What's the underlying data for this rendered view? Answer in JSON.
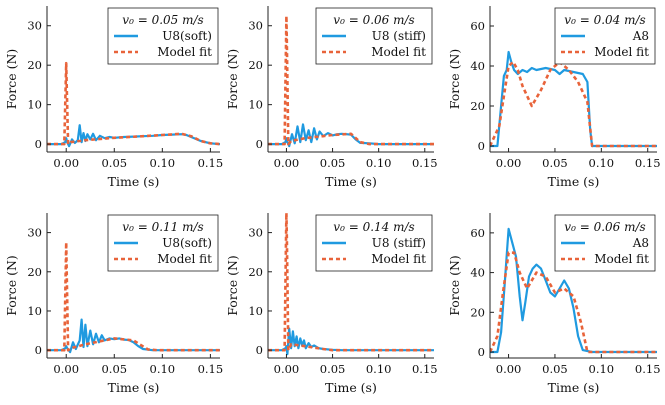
{
  "colors": {
    "measured": "#1f9ae0",
    "model": "#e8633a",
    "axis": "#222222"
  },
  "chart_data": [
    {
      "type": "line",
      "xlabel": "Time (s)",
      "ylabel": "Force (N)",
      "xlim": [
        -0.02,
        0.16
      ],
      "ylim": [
        -2,
        35
      ],
      "xticks": [
        0.0,
        0.05,
        0.1,
        0.15
      ],
      "xtick_labels": [
        "0.00",
        "0.05",
        "0.10",
        "0.15"
      ],
      "yticks": [
        0,
        10,
        20,
        30
      ],
      "ytick_labels": [
        "0",
        "10",
        "20",
        "30"
      ],
      "legend_title": "v₀ = 0.05 m/s",
      "series": [
        {
          "name": "U8(soft)",
          "style": "solid",
          "x": [
            -0.02,
            -0.005,
            -0.001,
            0.0,
            0.001,
            0.003,
            0.006,
            0.009,
            0.012,
            0.014,
            0.016,
            0.018,
            0.02,
            0.022,
            0.025,
            0.028,
            0.031,
            0.035,
            0.04,
            0.045,
            0.05,
            0.06,
            0.07,
            0.08,
            0.09,
            0.1,
            0.11,
            0.12,
            0.125,
            0.13,
            0.14,
            0.15,
            0.16
          ],
          "y": [
            0,
            0,
            0.5,
            1.5,
            0.5,
            -0.5,
            1.2,
            0.3,
            1.0,
            4.8,
            0.5,
            2.8,
            0.8,
            2.5,
            1.2,
            2.6,
            1.0,
            2.1,
            1.5,
            1.8,
            1.6,
            1.8,
            1.9,
            2.0,
            2.1,
            2.3,
            2.4,
            2.5,
            2.3,
            1.8,
            0.8,
            0.2,
            0.0
          ]
        },
        {
          "name": "Model fit",
          "style": "dashed",
          "x": [
            -0.02,
            -0.002,
            -0.0005,
            0.0,
            0.0005,
            0.002,
            0.005,
            0.02,
            0.05,
            0.08,
            0.1,
            0.12,
            0.13,
            0.14,
            0.15,
            0.16
          ],
          "y": [
            0,
            0,
            15,
            20.5,
            15,
            0,
            0.5,
            1.0,
            1.6,
            2.0,
            2.3,
            2.6,
            2.0,
            0.8,
            0.2,
            0
          ]
        }
      ]
    },
    {
      "type": "line",
      "xlabel": "Time (s)",
      "ylabel": "Force (N)",
      "xlim": [
        -0.02,
        0.16
      ],
      "ylim": [
        -2,
        35
      ],
      "xticks": [
        0.0,
        0.05,
        0.1,
        0.15
      ],
      "xtick_labels": [
        "0.00",
        "0.05",
        "0.10",
        "0.15"
      ],
      "yticks": [
        0,
        10,
        20,
        30
      ],
      "ytick_labels": [
        "0",
        "10",
        "20",
        "30"
      ],
      "legend_title": "v₀ = 0.06 m/s",
      "series": [
        {
          "name": "U8 (stiff)",
          "style": "solid",
          "x": [
            -0.02,
            -0.005,
            -0.001,
            0.0,
            0.001,
            0.003,
            0.006,
            0.009,
            0.012,
            0.015,
            0.018,
            0.021,
            0.024,
            0.027,
            0.03,
            0.033,
            0.036,
            0.04,
            0.045,
            0.05,
            0.055,
            0.06,
            0.065,
            0.07,
            0.075,
            0.08,
            0.09,
            0.1,
            0.12,
            0.16
          ],
          "y": [
            0,
            0,
            0.5,
            1.5,
            0.5,
            -0.5,
            2.5,
            0.2,
            4.5,
            0.5,
            5.0,
            1.0,
            3.5,
            0.5,
            4.0,
            1.2,
            3.2,
            2.0,
            2.8,
            2.2,
            2.5,
            2.6,
            2.5,
            2.4,
            1.2,
            0.3,
            0.2,
            0,
            0,
            0
          ]
        },
        {
          "name": "Model fit",
          "style": "dashed",
          "x": [
            -0.02,
            -0.002,
            -0.0005,
            0.0,
            0.0005,
            0.002,
            0.005,
            0.02,
            0.05,
            0.07,
            0.08,
            0.09,
            0.16
          ],
          "y": [
            0,
            0,
            25,
            32.5,
            25,
            0,
            0.8,
            1.5,
            2.3,
            2.6,
            0.5,
            0,
            0
          ]
        }
      ]
    },
    {
      "type": "line",
      "xlabel": "Time (s)",
      "ylabel": "Force (N)",
      "xlim": [
        -0.02,
        0.16
      ],
      "ylim": [
        -3,
        70
      ],
      "xticks": [
        0.0,
        0.05,
        0.1,
        0.15
      ],
      "xtick_labels": [
        "0.00",
        "0.05",
        "0.10",
        "0.15"
      ],
      "yticks": [
        0,
        20,
        40,
        60
      ],
      "ytick_labels": [
        "0",
        "20",
        "40",
        "60"
      ],
      "legend_title": "v₀ = 0.04 m/s",
      "series": [
        {
          "name": "A8",
          "style": "solid",
          "x": [
            -0.02,
            -0.012,
            -0.008,
            -0.005,
            -0.002,
            0.0,
            0.003,
            0.006,
            0.01,
            0.015,
            0.02,
            0.025,
            0.03,
            0.04,
            0.05,
            0.055,
            0.06,
            0.07,
            0.08,
            0.085,
            0.088,
            0.09,
            0.095,
            0.1,
            0.16
          ],
          "y": [
            0,
            0,
            20,
            35,
            38,
            47,
            42,
            38,
            36,
            38,
            37,
            39,
            38,
            39,
            38,
            36,
            38,
            37,
            36,
            32,
            8,
            0,
            0,
            0,
            0
          ]
        },
        {
          "name": "Model fit",
          "style": "dashed",
          "x": [
            -0.02,
            -0.01,
            -0.005,
            0.0,
            0.005,
            0.01,
            0.015,
            0.025,
            0.035,
            0.045,
            0.055,
            0.065,
            0.075,
            0.085,
            0.09,
            0.1,
            0.16
          ],
          "y": [
            0,
            10,
            25,
            40,
            42,
            38,
            30,
            20,
            28,
            38,
            42,
            38,
            32,
            22,
            0,
            0,
            0
          ]
        }
      ]
    },
    {
      "type": "line",
      "xlabel": "Time (s)",
      "ylabel": "Force (N)",
      "xlim": [
        -0.02,
        0.16
      ],
      "ylim": [
        -2,
        35
      ],
      "xticks": [
        0.0,
        0.05,
        0.1,
        0.15
      ],
      "xtick_labels": [
        "0.00",
        "0.05",
        "0.10",
        "0.15"
      ],
      "yticks": [
        0,
        10,
        20,
        30
      ],
      "ytick_labels": [
        "0",
        "10",
        "20",
        "30"
      ],
      "legend_title": "v₀ = 0.11 m/s",
      "series": [
        {
          "name": "U8(soft)",
          "style": "solid",
          "x": [
            -0.02,
            -0.005,
            -0.001,
            0.0,
            0.001,
            0.004,
            0.007,
            0.01,
            0.014,
            0.016,
            0.018,
            0.02,
            0.022,
            0.025,
            0.028,
            0.031,
            0.034,
            0.037,
            0.04,
            0.045,
            0.05,
            0.055,
            0.06,
            0.065,
            0.07,
            0.075,
            0.08,
            0.09,
            0.1,
            0.16
          ],
          "y": [
            0,
            0,
            0.5,
            1.0,
            0.5,
            -0.5,
            2.0,
            0.3,
            2.5,
            7.8,
            0.8,
            6.5,
            1.0,
            5.0,
            1.5,
            4.2,
            2.0,
            3.8,
            2.5,
            3.0,
            2.8,
            3.0,
            2.7,
            2.6,
            2.0,
            1.0,
            0.3,
            0,
            0,
            0
          ]
        },
        {
          "name": "Model fit",
          "style": "dashed",
          "x": [
            -0.02,
            -0.002,
            -0.0005,
            0.0,
            0.0005,
            0.002,
            0.005,
            0.02,
            0.05,
            0.07,
            0.085,
            0.095,
            0.16
          ],
          "y": [
            0,
            0,
            20,
            27.5,
            20,
            0,
            0.5,
            1.5,
            3.0,
            2.5,
            0.2,
            0,
            0
          ]
        }
      ]
    },
    {
      "type": "line",
      "xlabel": "Time (s)",
      "ylabel": "Force (N)",
      "xlim": [
        -0.02,
        0.16
      ],
      "ylim": [
        -2,
        35
      ],
      "xticks": [
        0.0,
        0.05,
        0.1,
        0.15
      ],
      "xtick_labels": [
        "0.00",
        "0.05",
        "0.10",
        "0.15"
      ],
      "yticks": [
        0,
        10,
        20,
        30
      ],
      "ytick_labels": [
        "0",
        "10",
        "20",
        "30"
      ],
      "legend_title": "v₀ = 0.14 m/s",
      "series": [
        {
          "name": "U8 (stiff)",
          "style": "solid",
          "x": [
            -0.02,
            -0.005,
            -0.001,
            0.0,
            0.001,
            0.003,
            0.005,
            0.007,
            0.009,
            0.011,
            0.013,
            0.015,
            0.017,
            0.019,
            0.021,
            0.024,
            0.027,
            0.03,
            0.035,
            0.04,
            0.05,
            0.06,
            0.16
          ],
          "y": [
            0,
            0,
            0.5,
            1.0,
            -1.0,
            5.5,
            0.5,
            4.8,
            1.0,
            3.5,
            0.5,
            3.0,
            1.2,
            2.5,
            0.5,
            1.8,
            0.8,
            1.2,
            0.5,
            0.3,
            0.1,
            0,
            0
          ]
        },
        {
          "name": "Model fit",
          "style": "dashed",
          "x": [
            -0.02,
            -0.002,
            -0.0005,
            0.0,
            0.0005,
            0.002,
            0.005,
            0.02,
            0.04,
            0.05,
            0.16
          ],
          "y": [
            0,
            0,
            28,
            35,
            28,
            0,
            1.5,
            1.0,
            0.3,
            0,
            0
          ]
        }
      ]
    },
    {
      "type": "line",
      "xlabel": "Time (s)",
      "ylabel": "Force (N)",
      "xlim": [
        -0.02,
        0.16
      ],
      "ylim": [
        -3,
        70
      ],
      "xticks": [
        0.0,
        0.05,
        0.1,
        0.15
      ],
      "xtick_labels": [
        "0.00",
        "0.05",
        "0.10",
        "0.15"
      ],
      "yticks": [
        0,
        20,
        40,
        60
      ],
      "ytick_labels": [
        "0",
        "20",
        "40",
        "60"
      ],
      "legend_title": "v₀ = 0.06 m/s",
      "series": [
        {
          "name": "A8",
          "style": "solid",
          "x": [
            -0.02,
            -0.012,
            -0.008,
            -0.004,
            -0.001,
            0.0,
            0.004,
            0.008,
            0.012,
            0.015,
            0.018,
            0.022,
            0.026,
            0.03,
            0.035,
            0.04,
            0.045,
            0.05,
            0.055,
            0.06,
            0.065,
            0.07,
            0.075,
            0.08,
            0.09,
            0.1,
            0.16
          ],
          "y": [
            0,
            0,
            10,
            35,
            55,
            62,
            55,
            48,
            28,
            16,
            25,
            38,
            42,
            44,
            42,
            36,
            30,
            28,
            32,
            36,
            32,
            22,
            8,
            1,
            0,
            0,
            0
          ]
        },
        {
          "name": "Model fit",
          "style": "dashed",
          "x": [
            -0.02,
            -0.012,
            -0.006,
            0.0,
            0.006,
            0.012,
            0.02,
            0.03,
            0.04,
            0.05,
            0.06,
            0.07,
            0.078,
            0.085,
            0.16
          ],
          "y": [
            0,
            8,
            30,
            50,
            50,
            40,
            32,
            40,
            38,
            30,
            32,
            28,
            15,
            0,
            0
          ]
        }
      ]
    }
  ]
}
